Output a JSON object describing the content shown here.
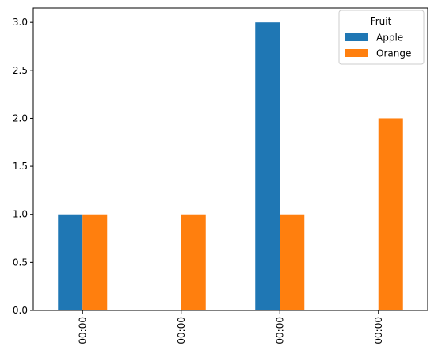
{
  "chart_data": {
    "type": "bar",
    "categories": [
      "00:00",
      "00:00",
      "00:00",
      "00:00"
    ],
    "series": [
      {
        "name": "Apple",
        "values": [
          1,
          0,
          3,
          0
        ],
        "color": "#1f77b4"
      },
      {
        "name": "Orange",
        "values": [
          1,
          1,
          1,
          2
        ],
        "color": "#ff7f0e"
      }
    ],
    "ylim": [
      0,
      3.15
    ],
    "yticks": [
      "0.0",
      "0.5",
      "1.0",
      "1.5",
      "2.0",
      "2.5",
      "3.0"
    ],
    "legend": {
      "title": "Fruit",
      "placement": "top-right"
    },
    "grid": false
  }
}
